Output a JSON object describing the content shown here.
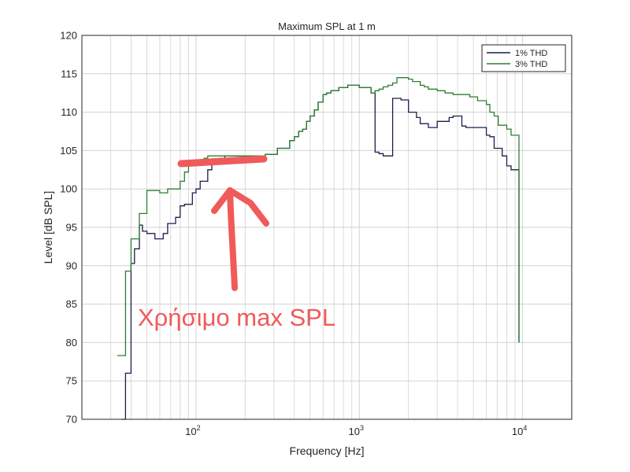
{
  "chart_data": {
    "type": "line",
    "title": "Maximum SPL at 1 m",
    "xlabel": "Frequency [Hz]",
    "ylabel": "Level [dB SPL]",
    "x_scale": "log",
    "xlim": [
      20,
      20000
    ],
    "ylim": [
      70,
      120
    ],
    "y_ticks": [
      "70",
      "75",
      "80",
      "85",
      "90",
      "95",
      "100",
      "105",
      "110",
      "115",
      "120"
    ],
    "x_ticks": [
      {
        "value": 100,
        "base": "10",
        "exp": "2"
      },
      {
        "value": 1000,
        "base": "10",
        "exp": "3"
      },
      {
        "value": 10000,
        "base": "10",
        "exp": "4"
      }
    ],
    "grid": true,
    "legend_position": "top-right",
    "series": [
      {
        "name": "1% THD",
        "color": "#1a1f4d",
        "x": [
          35,
          37,
          40,
          42,
          45,
          47,
          50,
          53,
          56,
          60,
          63,
          67,
          71,
          75,
          80,
          85,
          90,
          95,
          100,
          106,
          112,
          118,
          125,
          132,
          140,
          150,
          160,
          170,
          180,
          190,
          200,
          212,
          224,
          236,
          250,
          265,
          280,
          300,
          315,
          335,
          355,
          375,
          400,
          425,
          450,
          475,
          500,
          530,
          560,
          600,
          630,
          670,
          710,
          750,
          800,
          850,
          900,
          950,
          1000,
          1060,
          1120,
          1180,
          1250,
          1320,
          1400,
          1500,
          1600,
          1700,
          1800,
          1900,
          2000,
          2120,
          2240,
          2360,
          2500,
          2650,
          2800,
          3000,
          3150,
          3350,
          3550,
          3750,
          4000,
          4250,
          4500,
          4750,
          5000,
          5300,
          5600,
          6000,
          6300,
          6700,
          7100,
          7500,
          8000,
          8500,
          9000,
          9300,
          9500
        ],
        "y": [
          70,
          76,
          90.3,
          92.2,
          95.3,
          94.5,
          94.2,
          94.2,
          93.5,
          93.5,
          94.2,
          95.5,
          95.5,
          96.3,
          97.8,
          98,
          98,
          99.5,
          100,
          101,
          101,
          102.5,
          103.5,
          103.8,
          104,
          104.3,
          104.3,
          104.3,
          104.3,
          104.3,
          104.3,
          104.3,
          104.3,
          104.3,
          104.3,
          104.5,
          104.5,
          104.5,
          105.3,
          105.3,
          105.3,
          106.3,
          106.8,
          107.5,
          107.8,
          108.8,
          109.5,
          110.3,
          111.3,
          112.3,
          112.5,
          112.8,
          112.8,
          113.2,
          113.2,
          113.5,
          113.5,
          113.5,
          113.2,
          113.2,
          113.2,
          112.5,
          104.8,
          104.6,
          104.3,
          104.3,
          111.8,
          111.8,
          111.6,
          111.6,
          110,
          110,
          109.3,
          108.5,
          108.5,
          108,
          108,
          108.8,
          108.8,
          108.8,
          109.3,
          109.5,
          109.5,
          108.2,
          108,
          108,
          108,
          108,
          108,
          107,
          106.8,
          105.3,
          105.3,
          104.3,
          103,
          102.5,
          102.5,
          102.5,
          80
        ]
      },
      {
        "name": "3% THD",
        "color": "#2e7d32",
        "x": [
          33,
          35,
          37,
          40,
          42,
          45,
          47,
          50,
          53,
          56,
          60,
          63,
          67,
          71,
          75,
          80,
          85,
          90,
          95,
          100,
          106,
          112,
          118,
          125,
          132,
          140,
          150,
          160,
          170,
          180,
          190,
          200,
          212,
          224,
          236,
          250,
          265,
          280,
          300,
          315,
          335,
          355,
          375,
          400,
          425,
          450,
          475,
          500,
          530,
          560,
          600,
          630,
          670,
          710,
          750,
          800,
          850,
          900,
          950,
          1000,
          1060,
          1120,
          1180,
          1250,
          1320,
          1400,
          1500,
          1600,
          1700,
          1800,
          1900,
          2000,
          2120,
          2240,
          2360,
          2500,
          2650,
          2800,
          3000,
          3150,
          3350,
          3550,
          3750,
          4000,
          4250,
          4500,
          4750,
          5000,
          5300,
          5600,
          6000,
          6300,
          6700,
          7100,
          7500,
          8000,
          8500,
          9000,
          9300,
          9500
        ],
        "y": [
          78.3,
          78.3,
          89.3,
          93.5,
          93.5,
          96.8,
          96.8,
          99.8,
          99.8,
          99.8,
          99.5,
          99.5,
          100,
          100,
          100,
          101,
          102.2,
          103.5,
          103.5,
          103.8,
          103.8,
          104,
          104.3,
          104.3,
          104.3,
          104.3,
          104.3,
          104.3,
          104.3,
          104.3,
          104.3,
          104.3,
          104.3,
          104.3,
          104.3,
          104.3,
          104.5,
          104.5,
          104.5,
          105.3,
          105.3,
          105.3,
          106.3,
          106.8,
          107.5,
          107.8,
          108.8,
          109.5,
          110.3,
          111.3,
          112.3,
          112.5,
          112.8,
          112.8,
          113.2,
          113.2,
          113.5,
          113.5,
          113.5,
          113.2,
          113.2,
          113.2,
          112.5,
          112.8,
          113,
          113.3,
          113.5,
          113.8,
          114.5,
          114.5,
          114.5,
          114.3,
          114,
          114,
          113.5,
          113.3,
          113,
          113,
          112.8,
          112.8,
          112.5,
          112.5,
          112.3,
          112.3,
          112.3,
          112.3,
          112,
          112,
          111.5,
          111.5,
          111,
          110,
          109.5,
          108.3,
          108.3,
          107.8,
          107,
          107,
          107,
          80
        ]
      }
    ],
    "annotations": [
      {
        "text": "Χρήσιμο max SPL",
        "color": "#f05a5a",
        "type": "handwritten-overlay"
      }
    ]
  }
}
